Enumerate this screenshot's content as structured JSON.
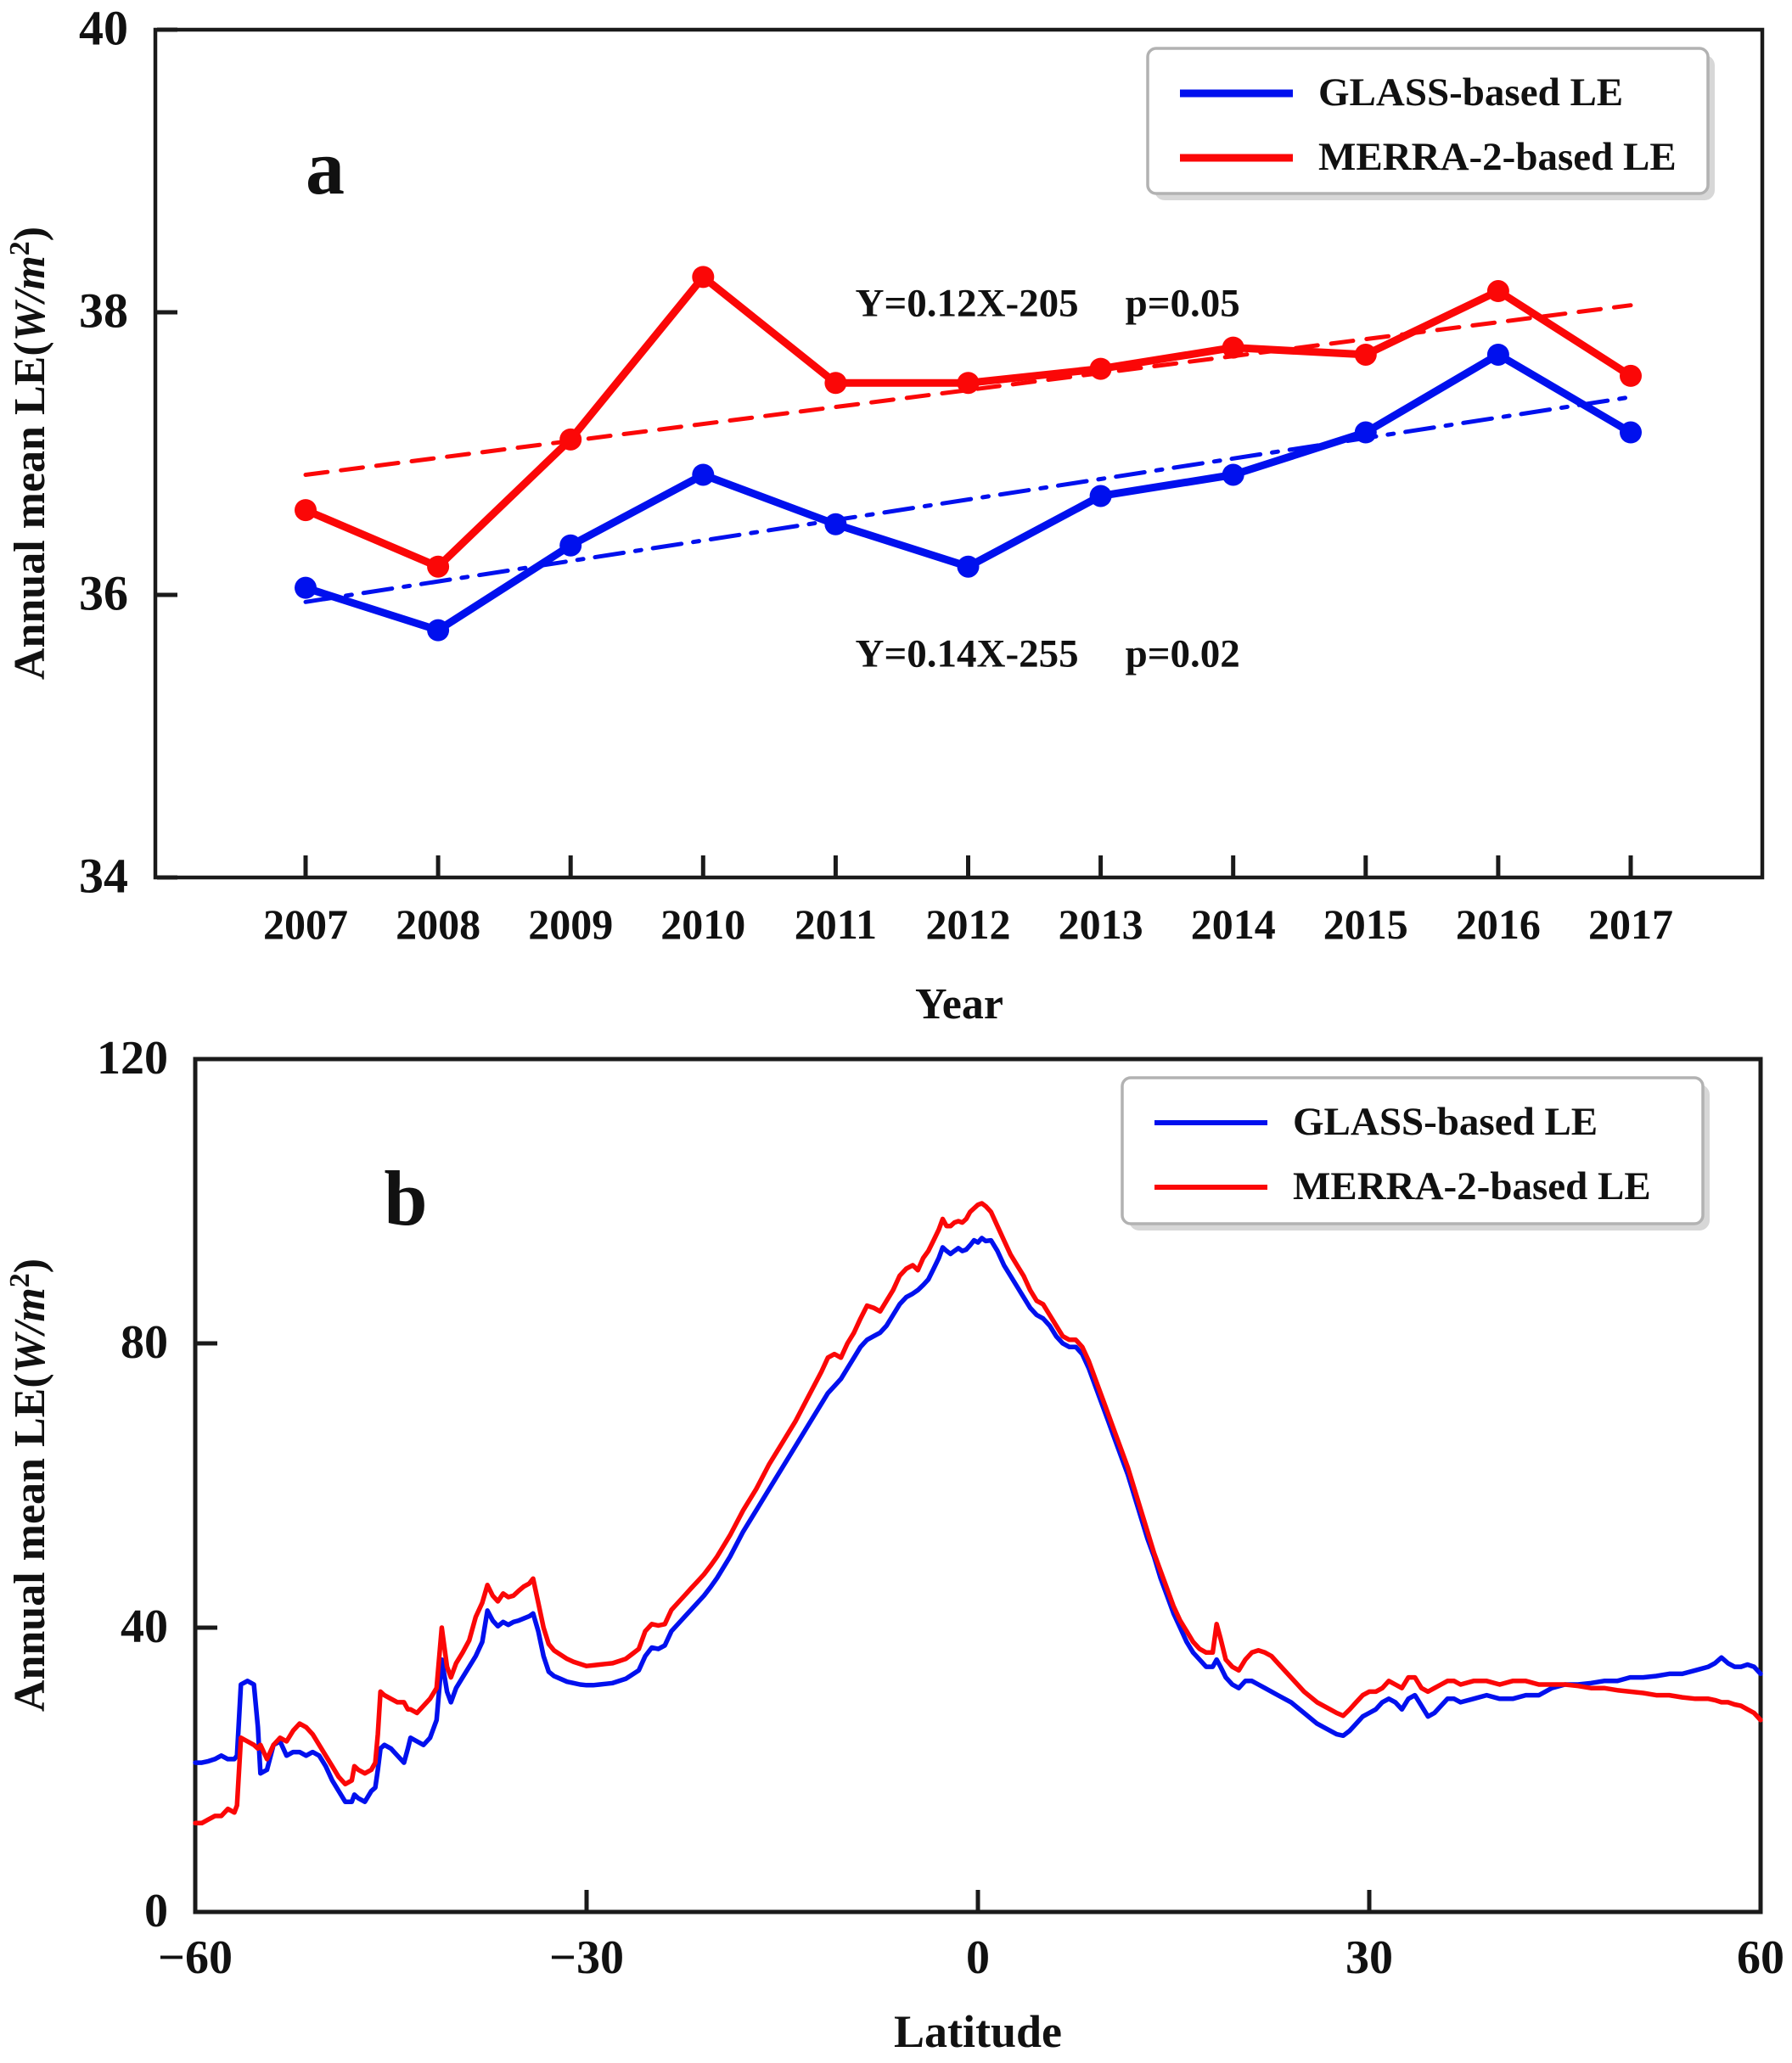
{
  "figure": {
    "background": "#ffffff",
    "axis_color": "#1a1a1a",
    "legend_border_color": "#b2b2b2",
    "legend_shadow_color": "#d7d7d7"
  },
  "chart_data": [
    {
      "type": "line",
      "panel_label": "a",
      "xlabel": "Year",
      "ylabel": {
        "prefix": "Annual mean LE(",
        "italic": "W/m",
        "sup": "2",
        "suffix": ")"
      },
      "x": [
        2007,
        2008,
        2009,
        2010,
        2011,
        2012,
        2013,
        2014,
        2015,
        2016,
        2017
      ],
      "xtick_labels": [
        "2007",
        "2008",
        "2009",
        "2010",
        "2011",
        "2012",
        "2013",
        "2014",
        "2015",
        "2016",
        "2017"
      ],
      "ylim": [
        34,
        40
      ],
      "yticks": [
        34,
        36,
        38,
        40
      ],
      "ytick_labels": [
        "34",
        "36",
        "38",
        "40"
      ],
      "grid": false,
      "legend": {
        "position": "top-right",
        "entries": [
          "GLASS-based LE",
          "MERRA-2-based LE"
        ]
      },
      "series": [
        {
          "name": "GLASS-based LE",
          "color": "#0010ee",
          "style": "solid",
          "markers": true,
          "values": [
            36.05,
            35.75,
            36.35,
            36.85,
            36.5,
            36.2,
            36.7,
            36.85,
            37.15,
            37.7,
            37.15
          ]
        },
        {
          "name": "MERRA-2-based LE",
          "color": "#fb0707",
          "style": "solid",
          "markers": true,
          "values": [
            36.6,
            36.2,
            37.1,
            38.25,
            37.5,
            37.5,
            37.6,
            37.75,
            37.7,
            38.15,
            37.55
          ]
        },
        {
          "name": "GLASS trend",
          "color": "#0010ee",
          "style": "dashdot",
          "markers": false,
          "endpoints": [
            [
              2007,
              35.95
            ],
            [
              2017,
              37.4
            ]
          ]
        },
        {
          "name": "MERRA-2 trend",
          "color": "#fb0707",
          "style": "dashed",
          "markers": false,
          "endpoints": [
            [
              2007,
              36.85
            ],
            [
              2017,
              38.05
            ]
          ]
        }
      ],
      "annotations": [
        {
          "text": "Y=0.12X-205",
          "ptext": "p=0.05",
          "x": 2012.6,
          "y": 38.04
        },
        {
          "text": "Y=0.14X-255",
          "ptext": "p=0.02",
          "x": 2012.6,
          "y": 35.56
        }
      ]
    },
    {
      "type": "line",
      "panel_label": "b",
      "xlabel": "Latitude",
      "ylabel": {
        "prefix": "Annual mean LE(",
        "italic": "W/m",
        "sup": "2",
        "suffix": ")"
      },
      "xlim": [
        -60,
        60
      ],
      "xticks": [
        -60,
        -30,
        0,
        30,
        60
      ],
      "xtick_labels": [
        "−60",
        "−30",
        "0",
        "30",
        "60"
      ],
      "ylim": [
        0,
        120
      ],
      "yticks": [
        0,
        40,
        80,
        120
      ],
      "ytick_labels": [
        "0",
        "40",
        "80",
        "120"
      ],
      "grid": false,
      "legend": {
        "position": "top-right",
        "entries": [
          "GLASS-based LE",
          "MERRA-2-based LE"
        ]
      },
      "lat": [
        -60,
        -59.5,
        -59,
        -58.5,
        -58,
        -57.5,
        -57,
        -56.8,
        -56.5,
        -56,
        -55.5,
        -55.2,
        -55,
        -54.5,
        -54,
        -53.5,
        -53,
        -52.5,
        -52,
        -51.5,
        -51,
        -50.5,
        -50,
        -49.5,
        -49,
        -48.5,
        -48,
        -47.8,
        -47.5,
        -47,
        -46.5,
        -46.2,
        -46,
        -45.8,
        -45.5,
        -45,
        -44.5,
        -44,
        -43.7,
        -43.5,
        -43,
        -42.5,
        -42,
        -41.5,
        -41.1,
        -40.7,
        -40.4,
        -40,
        -39.5,
        -39,
        -38.5,
        -38,
        -37.6,
        -37.2,
        -36.8,
        -36.4,
        -36,
        -35.6,
        -35.2,
        -34.8,
        -34.4,
        -34.1,
        -33.7,
        -33.3,
        -32.9,
        -32.5,
        -32,
        -31.5,
        -31,
        -30.5,
        -30,
        -29.5,
        -29,
        -28.5,
        -28,
        -27.5,
        -27,
        -26.5,
        -26,
        -25.5,
        -25,
        -24.5,
        -24,
        -23.5,
        -23,
        -22.5,
        -22,
        -21.5,
        -21,
        -20.5,
        -20,
        -19,
        -18,
        -17,
        -16,
        -15,
        -14,
        -13,
        -12,
        -11.5,
        -11,
        -10.5,
        -10,
        -9.5,
        -9,
        -8.5,
        -8,
        -7.5,
        -7,
        -6.5,
        -6,
        -5.5,
        -5,
        -4.6,
        -4.2,
        -3.8,
        -3.4,
        -3,
        -2.7,
        -2.4,
        -2.1,
        -1.8,
        -1.5,
        -1.2,
        -0.9,
        -0.6,
        -0.3,
        0,
        0.3,
        0.6,
        1,
        1.5,
        2,
        2.5,
        3,
        3.5,
        4,
        4.5,
        5,
        5.5,
        6,
        6.5,
        7,
        7.5,
        8,
        8.5,
        9,
        9.5,
        10,
        10.5,
        11,
        11.5,
        12,
        12.5,
        13,
        13.5,
        14,
        14.5,
        15,
        15.5,
        16,
        16.5,
        17,
        17.5,
        18,
        18.3,
        18.6,
        19,
        19.5,
        20,
        20.5,
        21,
        21.5,
        22,
        22.5,
        23,
        24,
        25,
        26,
        27,
        27.5,
        28,
        28.5,
        29,
        29.5,
        30,
        30.5,
        31,
        31.5,
        32,
        32.5,
        33,
        33.5,
        34,
        34.5,
        35,
        35.5,
        36,
        36.5,
        37,
        38,
        39,
        40,
        41,
        42,
        43,
        44,
        45,
        46,
        47,
        48,
        49,
        50,
        51,
        52,
        53,
        54,
        55,
        56,
        56.5,
        57,
        57.5,
        58,
        58.5,
        59,
        59.5,
        60
      ],
      "series": [
        {
          "name": "GLASS-based LE",
          "color": "#0010ee",
          "style": "solid",
          "markers": false,
          "values": [
            21,
            21,
            21.2,
            21.5,
            22,
            21.5,
            21.5,
            22,
            32,
            32.5,
            32,
            26,
            19.5,
            20,
            23.5,
            24,
            22,
            22.5,
            22.5,
            22,
            22.5,
            22,
            20.5,
            18.5,
            17,
            15.5,
            15.5,
            16.5,
            16,
            15.5,
            17,
            17.5,
            20,
            23,
            23.5,
            23,
            22,
            21,
            23,
            24.5,
            24,
            23.5,
            24.5,
            27,
            35.5,
            31,
            29.5,
            31.5,
            33,
            34.5,
            36,
            38,
            42.4,
            41,
            40.2,
            40.8,
            40.4,
            40.8,
            41,
            41.3,
            41.6,
            42,
            39.5,
            36,
            33.8,
            33.2,
            32.8,
            32.4,
            32.2,
            32,
            31.9,
            31.9,
            32,
            32.1,
            32.2,
            32.5,
            32.8,
            33.4,
            34,
            36,
            37.2,
            37,
            37.5,
            39.5,
            40.5,
            41.5,
            42.5,
            43.5,
            44.5,
            45.7,
            47,
            50,
            53.5,
            56.5,
            59.5,
            62.5,
            65.5,
            68.5,
            71.5,
            73,
            74,
            75,
            76.5,
            78,
            79.5,
            80.5,
            81,
            81.5,
            82.5,
            84,
            85.5,
            86.5,
            87,
            87.5,
            88.2,
            89,
            90.5,
            92,
            93.5,
            93,
            92.6,
            93,
            93.4,
            93,
            93.2,
            93.8,
            94.5,
            94.2,
            94.8,
            94.4,
            94.5,
            93,
            91,
            89.5,
            88,
            86.5,
            85,
            84,
            83.5,
            82.5,
            81,
            80,
            79.5,
            79.5,
            78.5,
            76.5,
            74,
            71.5,
            69,
            66.5,
            64,
            61.5,
            58.5,
            55.5,
            52.5,
            50,
            47,
            44.5,
            42,
            40,
            38,
            36.5,
            35.5,
            34.5,
            34.5,
            35.5,
            34.5,
            33,
            32,
            31.5,
            32.5,
            32.5,
            32,
            31.5,
            31,
            30.5,
            29.5,
            28,
            26.5,
            25.5,
            25,
            24.8,
            25.5,
            26.5,
            27.5,
            28,
            28.5,
            29.5,
            30,
            29.5,
            28.5,
            30,
            30.5,
            29,
            27.5,
            28,
            29,
            30,
            30,
            29.5,
            30,
            30.5,
            30,
            30,
            30.5,
            30.5,
            31.5,
            32,
            32,
            32.2,
            32.5,
            32.5,
            33,
            33,
            33.2,
            33.5,
            33.5,
            34,
            34.5,
            35,
            35.8,
            35,
            34.5,
            34.5,
            34.8,
            34.5,
            33.5
          ]
        },
        {
          "name": "MERRA-2-based LE",
          "color": "#fb0707",
          "style": "solid",
          "markers": false,
          "values": [
            12.5,
            12.5,
            13,
            13.5,
            13.5,
            14.5,
            14,
            15,
            24.5,
            24,
            23.5,
            23,
            23.5,
            21.5,
            23.5,
            24.5,
            24,
            25.5,
            26.5,
            26,
            25,
            23.5,
            22,
            20.5,
            19,
            18,
            18.5,
            20.5,
            20,
            19.5,
            20,
            21,
            25,
            31,
            30.5,
            30,
            29.5,
            29.5,
            28.5,
            28.5,
            28,
            29,
            30,
            31.5,
            40,
            34.5,
            33,
            35,
            36.5,
            38.2,
            41.5,
            43.5,
            46,
            44.5,
            43.7,
            44.8,
            44.3,
            44.5,
            45.2,
            45.8,
            46.2,
            46.9,
            43.5,
            40,
            37.7,
            36.8,
            36.2,
            35.6,
            35.2,
            34.9,
            34.6,
            34.7,
            34.8,
            34.9,
            35,
            35.3,
            35.6,
            36.3,
            37,
            39.5,
            40.5,
            40.3,
            40.5,
            42.5,
            43.5,
            44.5,
            45.5,
            46.5,
            47.5,
            48.7,
            50,
            53,
            56.5,
            59.5,
            63,
            66,
            69,
            72.5,
            76,
            78,
            78.5,
            78,
            80,
            81.5,
            83.5,
            85.3,
            85,
            84.5,
            86,
            87.5,
            89.5,
            90.5,
            91,
            90.3,
            92,
            93,
            94.5,
            96,
            97.5,
            96.5,
            96.5,
            97,
            97.2,
            97,
            97.5,
            98.5,
            99,
            99.5,
            99.7,
            99.3,
            98.5,
            96.5,
            94.5,
            92.5,
            91,
            89.5,
            87.5,
            86,
            85.5,
            84,
            82.5,
            81,
            80.5,
            80.5,
            79.5,
            77.5,
            75,
            72.5,
            70,
            67.5,
            65,
            62.5,
            59.5,
            56.5,
            53.5,
            50.5,
            48,
            45.5,
            43,
            41,
            39.5,
            38,
            37,
            36.5,
            36.5,
            40.5,
            38.5,
            35.5,
            34.5,
            34,
            35.5,
            36.5,
            36.8,
            36.5,
            36,
            35,
            33,
            31,
            29.5,
            28.5,
            28,
            27.6,
            28.5,
            29.5,
            30.5,
            31,
            31,
            31.5,
            32.5,
            32,
            31.5,
            33,
            33,
            31.5,
            31,
            31.5,
            32,
            32.5,
            32.5,
            32,
            32.5,
            32.5,
            32,
            32.5,
            32.5,
            32,
            32,
            32,
            31.8,
            31.5,
            31.5,
            31.2,
            31,
            30.8,
            30.5,
            30.5,
            30.2,
            30,
            30,
            29.8,
            29.5,
            29.5,
            29.2,
            29,
            28.5,
            28,
            27
          ]
        }
      ]
    }
  ]
}
